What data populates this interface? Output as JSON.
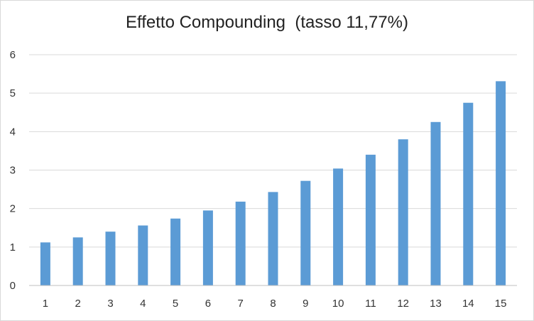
{
  "chart_data": {
    "type": "bar",
    "title": "Effetto Compounding  (tasso 11,77%)",
    "xlabel": "",
    "ylabel": "",
    "categories": [
      "1",
      "2",
      "3",
      "4",
      "5",
      "6",
      "7",
      "8",
      "9",
      "10",
      "11",
      "12",
      "13",
      "14",
      "15"
    ],
    "values": [
      1.12,
      1.25,
      1.4,
      1.56,
      1.74,
      1.95,
      2.18,
      2.43,
      2.72,
      3.04,
      3.4,
      3.8,
      4.25,
      4.75,
      5.31
    ],
    "ylim": [
      0,
      6
    ],
    "yticks": [
      "0",
      "1",
      "2",
      "3",
      "4",
      "5",
      "6"
    ],
    "grid": true,
    "legend": "none",
    "colors": {
      "bar": "#5b9bd5",
      "grid": "#d9d9d9",
      "axis": "#bfbfbf"
    }
  }
}
